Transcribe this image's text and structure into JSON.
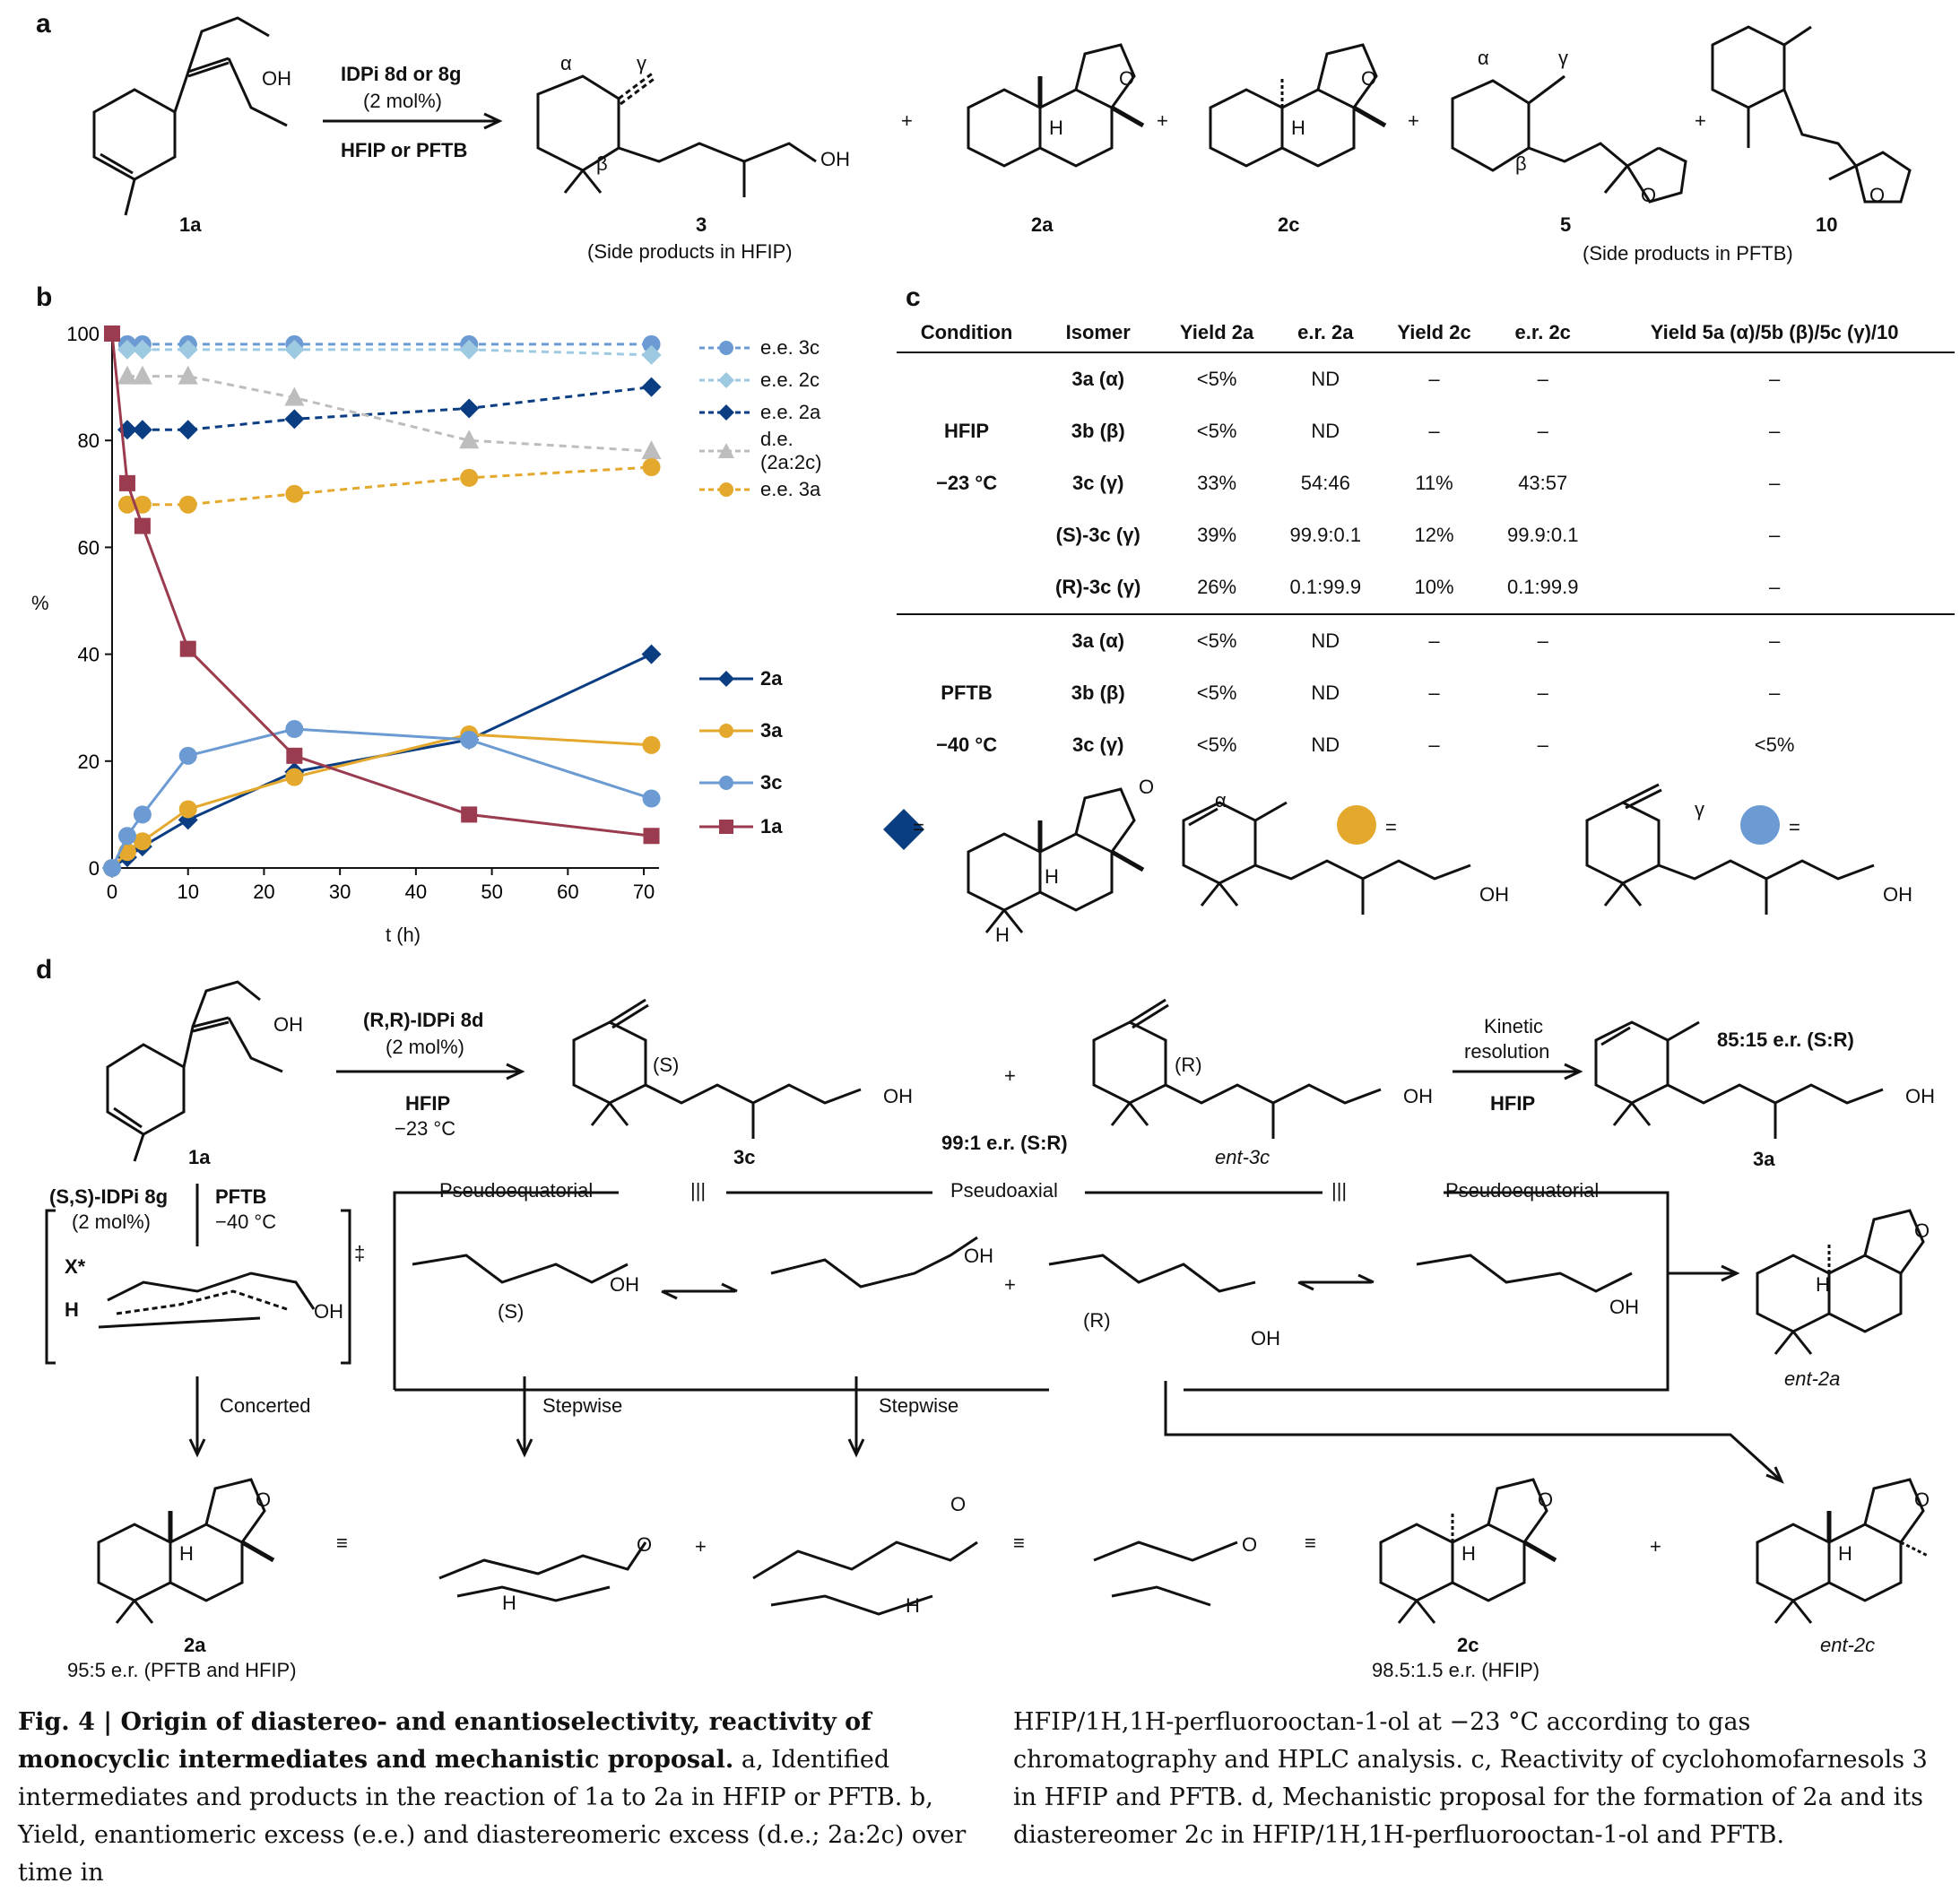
{
  "panel_a": {
    "letter": "a",
    "start_label": "1a",
    "reagent_line1": "IDPi 8d or 8g",
    "reagent_line2": "(2 mol%)",
    "solvent": "HFIP or PFTB",
    "products": [
      {
        "label": "3",
        "note": "(Side products in HFIP)"
      },
      {
        "label": "2a"
      },
      {
        "label": "2c"
      },
      {
        "label": "5"
      },
      {
        "label": "10",
        "note": "(Side products in PFTB)"
      }
    ],
    "greek": {
      "alpha": "α",
      "beta": "β",
      "gamma": "γ"
    },
    "atoms": {
      "OH": "OH",
      "O": "O",
      "H": "H"
    },
    "plus": "+"
  },
  "panel_b": {
    "letter": "b",
    "ylabel": "%",
    "xlabel": "t (h)",
    "legend_top": [
      {
        "name": "e.e. 3c"
      },
      {
        "name": "e.e. 2c"
      },
      {
        "name": "e.e. 2a"
      },
      {
        "name": "d.e. (2a:2c)"
      },
      {
        "name": "e.e. 3a"
      }
    ],
    "legend_bottom": [
      {
        "name": "2a"
      },
      {
        "name": "3a"
      },
      {
        "name": "3c"
      },
      {
        "name": "1a"
      }
    ]
  },
  "chart_data": {
    "type": "line",
    "xlim": [
      0,
      72
    ],
    "ylim": [
      0,
      100
    ],
    "xticks": [
      0,
      10,
      20,
      30,
      40,
      50,
      60,
      70
    ],
    "yticks": [
      0,
      20,
      40,
      60,
      80,
      100
    ],
    "xlabel": "t (h)",
    "ylabel": "%",
    "series": [
      {
        "name": "e.e. 3c",
        "style": "dashed",
        "marker": "circle",
        "color": "#6b9bd2",
        "x": [
          2,
          4,
          10,
          24,
          47,
          71
        ],
        "y": [
          98,
          98,
          98,
          98,
          98,
          98
        ]
      },
      {
        "name": "e.e. 2c",
        "style": "dashed",
        "marker": "diamond",
        "color": "#9ecae1",
        "x": [
          2,
          4,
          10,
          24,
          47,
          71
        ],
        "y": [
          97,
          97,
          97,
          97,
          97,
          96
        ]
      },
      {
        "name": "e.e. 2a",
        "style": "dashed",
        "marker": "diamond",
        "color": "#0b3d82",
        "x": [
          2,
          4,
          10,
          24,
          47,
          71
        ],
        "y": [
          82,
          82,
          82,
          84,
          86,
          90
        ]
      },
      {
        "name": "d.e. (2a:2c)",
        "style": "dashed",
        "marker": "triangle",
        "color": "#bdbdbd",
        "x": [
          2,
          4,
          10,
          24,
          47,
          71
        ],
        "y": [
          92,
          92,
          92,
          88,
          80,
          78
        ]
      },
      {
        "name": "e.e. 3a",
        "style": "dashed",
        "marker": "circle",
        "color": "#e4a82c",
        "x": [
          2,
          4,
          10,
          24,
          47,
          71
        ],
        "y": [
          68,
          68,
          68,
          70,
          73,
          75
        ]
      },
      {
        "name": "2a",
        "style": "solid",
        "marker": "diamond",
        "color": "#0b3d82",
        "x": [
          0,
          2,
          4,
          10,
          24,
          47,
          71
        ],
        "y": [
          0,
          2,
          4,
          9,
          18,
          24,
          40
        ]
      },
      {
        "name": "3a",
        "style": "solid",
        "marker": "circle",
        "color": "#e4a82c",
        "x": [
          0,
          2,
          4,
          10,
          24,
          47,
          71
        ],
        "y": [
          0,
          3,
          5,
          11,
          17,
          25,
          23
        ]
      },
      {
        "name": "3c",
        "style": "solid",
        "marker": "circle",
        "color": "#6b9bd2",
        "x": [
          0,
          2,
          4,
          10,
          24,
          47,
          71
        ],
        "y": [
          0,
          6,
          10,
          21,
          26,
          24,
          13
        ]
      },
      {
        "name": "1a",
        "style": "solid",
        "marker": "square",
        "color": "#9a3b4f",
        "x": [
          0,
          2,
          4,
          10,
          24,
          47,
          71
        ],
        "y": [
          100,
          72,
          64,
          41,
          21,
          10,
          6
        ]
      }
    ]
  },
  "panel_c": {
    "letter": "c",
    "headers": [
      "Condition",
      "Isomer",
      "Yield 2a",
      "e.r. 2a",
      "Yield 2c",
      "e.r. 2c",
      "Yield 5a (α)/5b (β)/5c (γ)/10"
    ],
    "groups": [
      {
        "condition": "HFIP",
        "temp": "−23 °C",
        "rows": [
          [
            "3a (α)",
            "<5%",
            "ND",
            "–",
            "–",
            "–"
          ],
          [
            "3b (β)",
            "<5%",
            "ND",
            "–",
            "–",
            "–"
          ],
          [
            "3c (γ)",
            "33%",
            "54:46",
            "11%",
            "43:57",
            "–"
          ],
          [
            "(S)-3c (γ)",
            "39%",
            "99.9:0.1",
            "12%",
            "99.9:0.1",
            "–"
          ],
          [
            "(R)-3c (γ)",
            "26%",
            "0.1:99.9",
            "10%",
            "0.1:99.9",
            "–"
          ]
        ]
      },
      {
        "condition": "PFTB",
        "temp": "−40 °C",
        "rows": [
          [
            "3a (α)",
            "<5%",
            "ND",
            "–",
            "–",
            "–"
          ],
          [
            "3b (β)",
            "<5%",
            "ND",
            "–",
            "–",
            "–"
          ],
          [
            "3c (γ)",
            "<5%",
            "ND",
            "–",
            "–",
            "<5%"
          ]
        ]
      }
    ],
    "key_equals": "=",
    "key_alpha": "α",
    "key_gamma": "γ",
    "key_oh": "OH",
    "key_o": "O",
    "key_h": "H",
    "colors": {
      "diamond": "#0b3d82",
      "yellow": "#e4a82c",
      "blue": "#6b9bd2"
    }
  },
  "panel_d": {
    "letter": "d",
    "start_label": "1a",
    "reagent1": "(R,R)-IDPi 8d",
    "reagent1_amt": "(2 mol%)",
    "solvent1": "HFIP",
    "temp1": "−23 °C",
    "product_3c": "3c",
    "er_3c": "99:1 e.r. (S:R)",
    "ent_3c": "ent-3c",
    "kinetic": "Kinetic",
    "resolution": "resolution",
    "solvent_kr": "HFIP",
    "er_3a": "85:15 e.r. (S:R)",
    "label_3a": "3a",
    "reagent2": "(S,S)-IDPi 8g",
    "reagent2_amt": "(2 mol%)",
    "solvent2": "PFTB",
    "temp2": "−40 °C",
    "ts_x": "X*",
    "ts_h": "H",
    "ts_dagger": "‡",
    "pseudo_eq1": "Pseudoequatorial",
    "pseudo_ax": "Pseudoaxial",
    "pseudo_eq2": "Pseudoequatorial",
    "equiv": "|||",
    "concerted": "Concerted",
    "stepwise1": "Stepwise",
    "stepwise2": "Stepwise",
    "S_label": "(S)",
    "R_label": "(R)",
    "label_2a": "2a",
    "er_2a": "95:5 e.r. (PFTB and HFIP)",
    "label_2c": "2c",
    "er_2c": "98.5:1.5 e.r. (HFIP)",
    "ent_2a": "ent-2a",
    "ent_2c": "ent-2c",
    "equiv_sym": "≡",
    "plus": "+",
    "OH": "OH",
    "O": "O",
    "H": "H"
  },
  "caption": {
    "fig": "Fig. 4 | ",
    "title": "Origin of diastereo- and enantioselectivity, reactivity of monocyclic intermediates and mechanistic proposal.",
    "left_text": "a, Identified intermediates and products in the reaction of 1a to 2a in HFIP or PFTB. b, Yield, enantiomeric excess (e.e.) and diastereomeric excess (d.e.; 2a:2c) over time in",
    "right_text": "HFIP/1H,1H-perfluorooctan-1-ol at −23 °C according to gas chromatography and HPLC analysis. c, Reactivity of cyclohomofarnesols 3 in HFIP and PFTB. d, Mechanistic proposal for the formation of 2a and its diastereomer 2c in HFIP/1H,1H-perfluorooctan-1-ol and PFTB."
  }
}
